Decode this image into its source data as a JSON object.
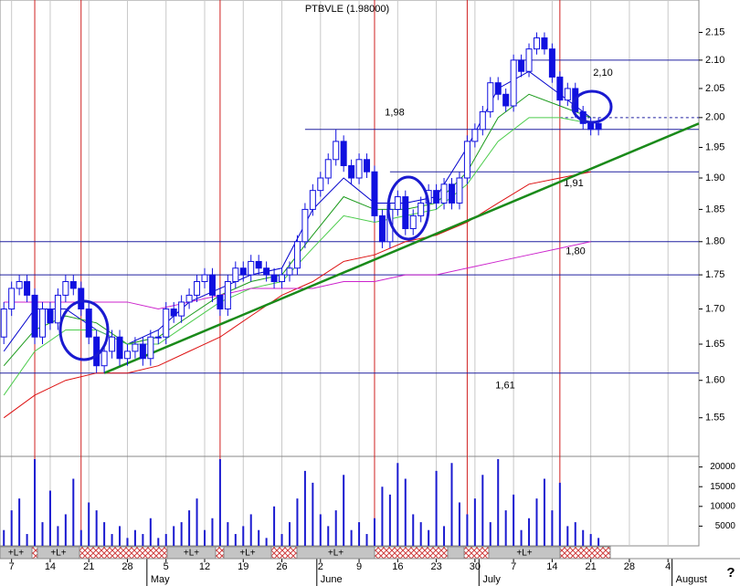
{
  "chart_data": {
    "type": "candlestick",
    "title": "PTBVLE (1.98000)",
    "corner_mark": "?",
    "xlim": [
      -0.5,
      90
    ],
    "xticks": [
      {
        "value": 1,
        "label": "7"
      },
      {
        "value": 6,
        "label": "14"
      },
      {
        "value": 11,
        "label": "21"
      },
      {
        "value": 16,
        "label": "28"
      },
      {
        "value": 21,
        "label": "5"
      },
      {
        "value": 26,
        "label": "12"
      },
      {
        "value": 31,
        "label": "19"
      },
      {
        "value": 36,
        "label": "26"
      },
      {
        "value": 41,
        "label": "2"
      },
      {
        "value": 46,
        "label": "9"
      },
      {
        "value": 51,
        "label": "16"
      },
      {
        "value": 56,
        "label": "23"
      },
      {
        "value": 61,
        "label": "30"
      },
      {
        "value": 66,
        "label": "7"
      },
      {
        "value": 71,
        "label": "14"
      },
      {
        "value": 76,
        "label": "21"
      },
      {
        "value": 81,
        "label": "28"
      },
      {
        "value": 86,
        "label": "4"
      }
    ],
    "month_ticks": [
      {
        "value": 19,
        "label": "May"
      },
      {
        "value": 41,
        "label": "June"
      },
      {
        "value": 62,
        "label": "July"
      },
      {
        "value": 87,
        "label": "August"
      }
    ],
    "ylim": [
      1.5,
      2.21
    ],
    "log_scale": true,
    "yticks": [
      2.15,
      {
        "value": 2.1,
        "label": "2.10"
      },
      2.05,
      {
        "value": 2,
        "label": "2.00"
      },
      1.95,
      {
        "value": 1.9,
        "label": "1.90"
      },
      1.85,
      {
        "value": 1.8,
        "label": "1.80"
      },
      1.75,
      {
        "value": 1.7,
        "label": "1.70"
      },
      1.65,
      {
        "value": 1.6,
        "label": "1.60"
      },
      1.55
    ],
    "up_color": "#ffffff",
    "down_color": "#1010e0",
    "candle_edge": "#1010e0",
    "open": [
      1.66,
      1.7,
      1.73,
      1.74,
      1.72,
      1.66,
      1.7,
      1.68,
      1.72,
      1.74,
      1.73,
      1.7,
      1.66,
      1.62,
      1.64,
      1.66,
      1.63,
      1.64,
      1.65,
      1.63,
      1.66,
      1.66,
      1.7,
      1.69,
      1.71,
      1.72,
      1.74,
      1.75,
      1.72,
      1.7,
      1.74,
      1.76,
      1.75,
      1.77,
      1.76,
      1.75,
      1.74,
      1.75,
      1.76,
      1.8,
      1.85,
      1.88,
      1.9,
      1.93,
      1.96,
      1.92,
      1.9,
      1.93,
      1.91,
      1.84,
      1.8,
      1.85,
      1.87,
      1.82,
      1.84,
      1.86,
      1.88,
      1.86,
      1.89,
      1.86,
      1.9,
      1.96,
      1.98,
      2.01,
      2.06,
      2.04,
      2.02,
      2.1,
      2.08,
      2.12,
      2.14,
      2.12,
      2.07,
      2.03,
      2.05,
      2.01,
      1.99,
      1.99
    ],
    "high": [
      1.71,
      1.74,
      1.75,
      1.75,
      1.73,
      1.71,
      1.71,
      1.73,
      1.75,
      1.75,
      1.74,
      1.71,
      1.67,
      1.65,
      1.67,
      1.67,
      1.65,
      1.66,
      1.66,
      1.67,
      1.67,
      1.71,
      1.71,
      1.72,
      1.73,
      1.75,
      1.76,
      1.76,
      1.73,
      1.75,
      1.77,
      1.77,
      1.78,
      1.78,
      1.77,
      1.76,
      1.76,
      1.77,
      1.81,
      1.86,
      1.89,
      1.91,
      1.94,
      1.98,
      1.97,
      1.93,
      1.94,
      1.94,
      1.92,
      1.85,
      1.86,
      1.88,
      1.88,
      1.85,
      1.87,
      1.89,
      1.89,
      1.9,
      1.9,
      1.91,
      1.97,
      1.99,
      2.02,
      2.07,
      2.07,
      2.05,
      2.11,
      2.11,
      2.13,
      2.15,
      2.15,
      2.13,
      2.08,
      2.06,
      2.06,
      2.02,
      2.0,
      2.0
    ],
    "low": [
      1.65,
      1.69,
      1.72,
      1.71,
      1.65,
      1.65,
      1.67,
      1.67,
      1.71,
      1.72,
      1.69,
      1.65,
      1.61,
      1.61,
      1.63,
      1.62,
      1.62,
      1.63,
      1.62,
      1.62,
      1.65,
      1.65,
      1.68,
      1.68,
      1.7,
      1.71,
      1.73,
      1.71,
      1.69,
      1.69,
      1.73,
      1.74,
      1.74,
      1.75,
      1.74,
      1.73,
      1.73,
      1.74,
      1.75,
      1.79,
      1.84,
      1.87,
      1.89,
      1.92,
      1.91,
      1.89,
      1.89,
      1.9,
      1.83,
      1.79,
      1.79,
      1.84,
      1.81,
      1.81,
      1.83,
      1.85,
      1.85,
      1.85,
      1.85,
      1.85,
      1.89,
      1.95,
      1.97,
      2.0,
      2.03,
      2.01,
      2.01,
      2.07,
      2.07,
      2.11,
      2.11,
      2.06,
      2.02,
      2.02,
      2.0,
      1.98,
      1.97,
      1.97
    ],
    "close": [
      1.7,
      1.73,
      1.74,
      1.72,
      1.66,
      1.7,
      1.68,
      1.72,
      1.74,
      1.73,
      1.7,
      1.66,
      1.62,
      1.64,
      1.66,
      1.63,
      1.64,
      1.65,
      1.63,
      1.66,
      1.66,
      1.7,
      1.69,
      1.71,
      1.72,
      1.74,
      1.75,
      1.72,
      1.7,
      1.74,
      1.76,
      1.75,
      1.77,
      1.76,
      1.75,
      1.74,
      1.75,
      1.76,
      1.8,
      1.85,
      1.88,
      1.9,
      1.93,
      1.96,
      1.92,
      1.9,
      1.93,
      1.91,
      1.84,
      1.8,
      1.85,
      1.87,
      1.82,
      1.84,
      1.86,
      1.88,
      1.86,
      1.89,
      1.86,
      1.9,
      1.96,
      1.98,
      2.01,
      2.06,
      2.04,
      2.02,
      2.1,
      2.08,
      2.12,
      2.14,
      2.12,
      2.07,
      2.03,
      2.05,
      2.01,
      1.99,
      1.98,
      1.98
    ],
    "ma_x": [
      0,
      4,
      8,
      12,
      16,
      20,
      24,
      28,
      32,
      36,
      40,
      44,
      48,
      52,
      56,
      60,
      64,
      68,
      72,
      76
    ],
    "series": [
      {
        "color": "#0000cc",
        "values": [
          1.64,
          1.7,
          1.7,
          1.67,
          1.65,
          1.67,
          1.71,
          1.73,
          1.75,
          1.76,
          1.85,
          1.9,
          1.86,
          1.86,
          1.87,
          1.95,
          2.05,
          2.08,
          2.04,
          2.0
        ]
      },
      {
        "color": "#1a9a1a",
        "values": [
          1.62,
          1.67,
          1.69,
          1.68,
          1.65,
          1.66,
          1.69,
          1.72,
          1.74,
          1.75,
          1.81,
          1.87,
          1.85,
          1.85,
          1.86,
          1.91,
          2.0,
          2.04,
          2.02,
          2.0
        ]
      },
      {
        "color": "#4ccc4c",
        "values": [
          1.58,
          1.64,
          1.67,
          1.67,
          1.65,
          1.65,
          1.68,
          1.71,
          1.73,
          1.74,
          1.79,
          1.84,
          1.83,
          1.84,
          1.85,
          1.89,
          1.96,
          2.0,
          2.0,
          1.99
        ]
      },
      {
        "color": "#dd1111",
        "values": [
          1.55,
          1.58,
          1.6,
          1.61,
          1.61,
          1.62,
          1.64,
          1.66,
          1.69,
          1.72,
          1.74,
          1.77,
          1.78,
          1.8,
          1.81,
          1.83,
          1.86,
          1.89,
          1.9,
          1.91
        ]
      },
      {
        "color": "#cc22cc",
        "values": [
          1.71,
          1.71,
          1.71,
          1.71,
          1.71,
          1.7,
          1.71,
          1.72,
          1.73,
          1.73,
          1.73,
          1.74,
          1.74,
          1.75,
          1.75,
          1.76,
          1.77,
          1.78,
          1.79,
          1.8
        ]
      }
    ],
    "trendline": {
      "x": [
        13,
        90
      ],
      "y": [
        1.61,
        1.99
      ],
      "color": "#1a8a1a"
    },
    "levels": [
      {
        "value": 2.1,
        "x_start": 66,
        "label": "2,10"
      },
      {
        "value": 2.0,
        "x_start": 72,
        "dashed": true
      },
      {
        "value": 1.98,
        "x_start": 39,
        "label": "1,98"
      },
      {
        "value": 1.91,
        "x_start": 50,
        "label": "1,91"
      },
      {
        "value": 1.8,
        "label": "1,80"
      },
      {
        "value": 1.75
      },
      {
        "value": 1.61,
        "label": "1,61"
      }
    ],
    "event_lines": [
      4,
      10,
      28,
      48,
      60,
      72
    ],
    "volume": [
      4000,
      9000,
      12000,
      3000,
      22000,
      6000,
      14000,
      5000,
      8000,
      17000,
      4000,
      11000,
      9000,
      6000,
      3000,
      5000,
      2000,
      4000,
      3000,
      7000,
      2000,
      3000,
      5000,
      6000,
      9000,
      12000,
      4000,
      7000,
      22000,
      6000,
      3000,
      5000,
      8000,
      4000,
      2000,
      10000,
      3000,
      6000,
      12000,
      19000,
      16000,
      8000,
      5000,
      9000,
      18000,
      4000,
      6000,
      3000,
      7000,
      15000,
      13000,
      21000,
      17000,
      8000,
      6000,
      4000,
      19000,
      5000,
      21000,
      11000,
      8000,
      12000,
      18000,
      6000,
      22000,
      9000,
      13000,
      4000,
      7000,
      12000,
      17000,
      9000,
      16000,
      5000,
      6000,
      4000,
      3000,
      2000
    ],
    "vlim": [
      0,
      25000
    ],
    "vticks": [
      5000,
      10000,
      15000,
      20000
    ],
    "signal_strip": [
      "+L+",
      "+L+",
      "+L+",
      "+L+",
      "+L+",
      "+L+"
    ]
  }
}
